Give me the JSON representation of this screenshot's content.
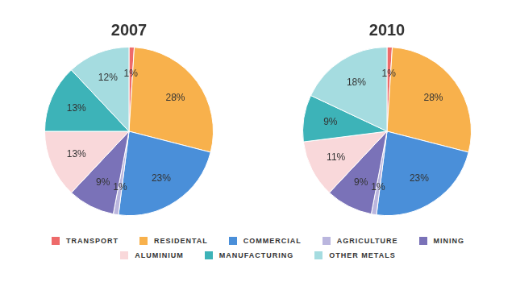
{
  "chart_data": [
    {
      "type": "pie",
      "title": "2007",
      "categories": [
        "TRANSPORT",
        "RESIDENTAL",
        "COMMERCIAL",
        "AGRICULTURE",
        "MINING",
        "ALUMINIUM",
        "MANUFACTURING",
        "OTHER METALS"
      ],
      "values": [
        1,
        28,
        23,
        1,
        9,
        13,
        13,
        12
      ],
      "value_labels": [
        "1%",
        "28%",
        "23%",
        "1%",
        "9%",
        "13%",
        "13%",
        "12%"
      ],
      "colors": [
        "#ee6a6a",
        "#f8b14c",
        "#4a8fd9",
        "#bab6de",
        "#7a72b8",
        "#f9d8da",
        "#3db3b8",
        "#a5dce0"
      ],
      "data_labels": true,
      "legend": "bottom"
    },
    {
      "type": "pie",
      "title": "2010",
      "categories": [
        "TRANSPORT",
        "RESIDENTAL",
        "COMMERCIAL",
        "AGRICULTURE",
        "MINING",
        "ALUMINIUM",
        "MANUFACTURING",
        "OTHER METALS"
      ],
      "values": [
        1,
        28,
        23,
        1,
        9,
        11,
        9,
        18
      ],
      "value_labels": [
        "1%",
        "28%",
        "23%",
        "1%",
        "9%",
        "11%",
        "9%",
        "18%"
      ],
      "colors": [
        "#ee6a6a",
        "#f8b14c",
        "#4a8fd9",
        "#bab6de",
        "#7a72b8",
        "#f9d8da",
        "#3db3b8",
        "#a5dce0"
      ],
      "data_labels": true,
      "legend": "bottom"
    }
  ]
}
